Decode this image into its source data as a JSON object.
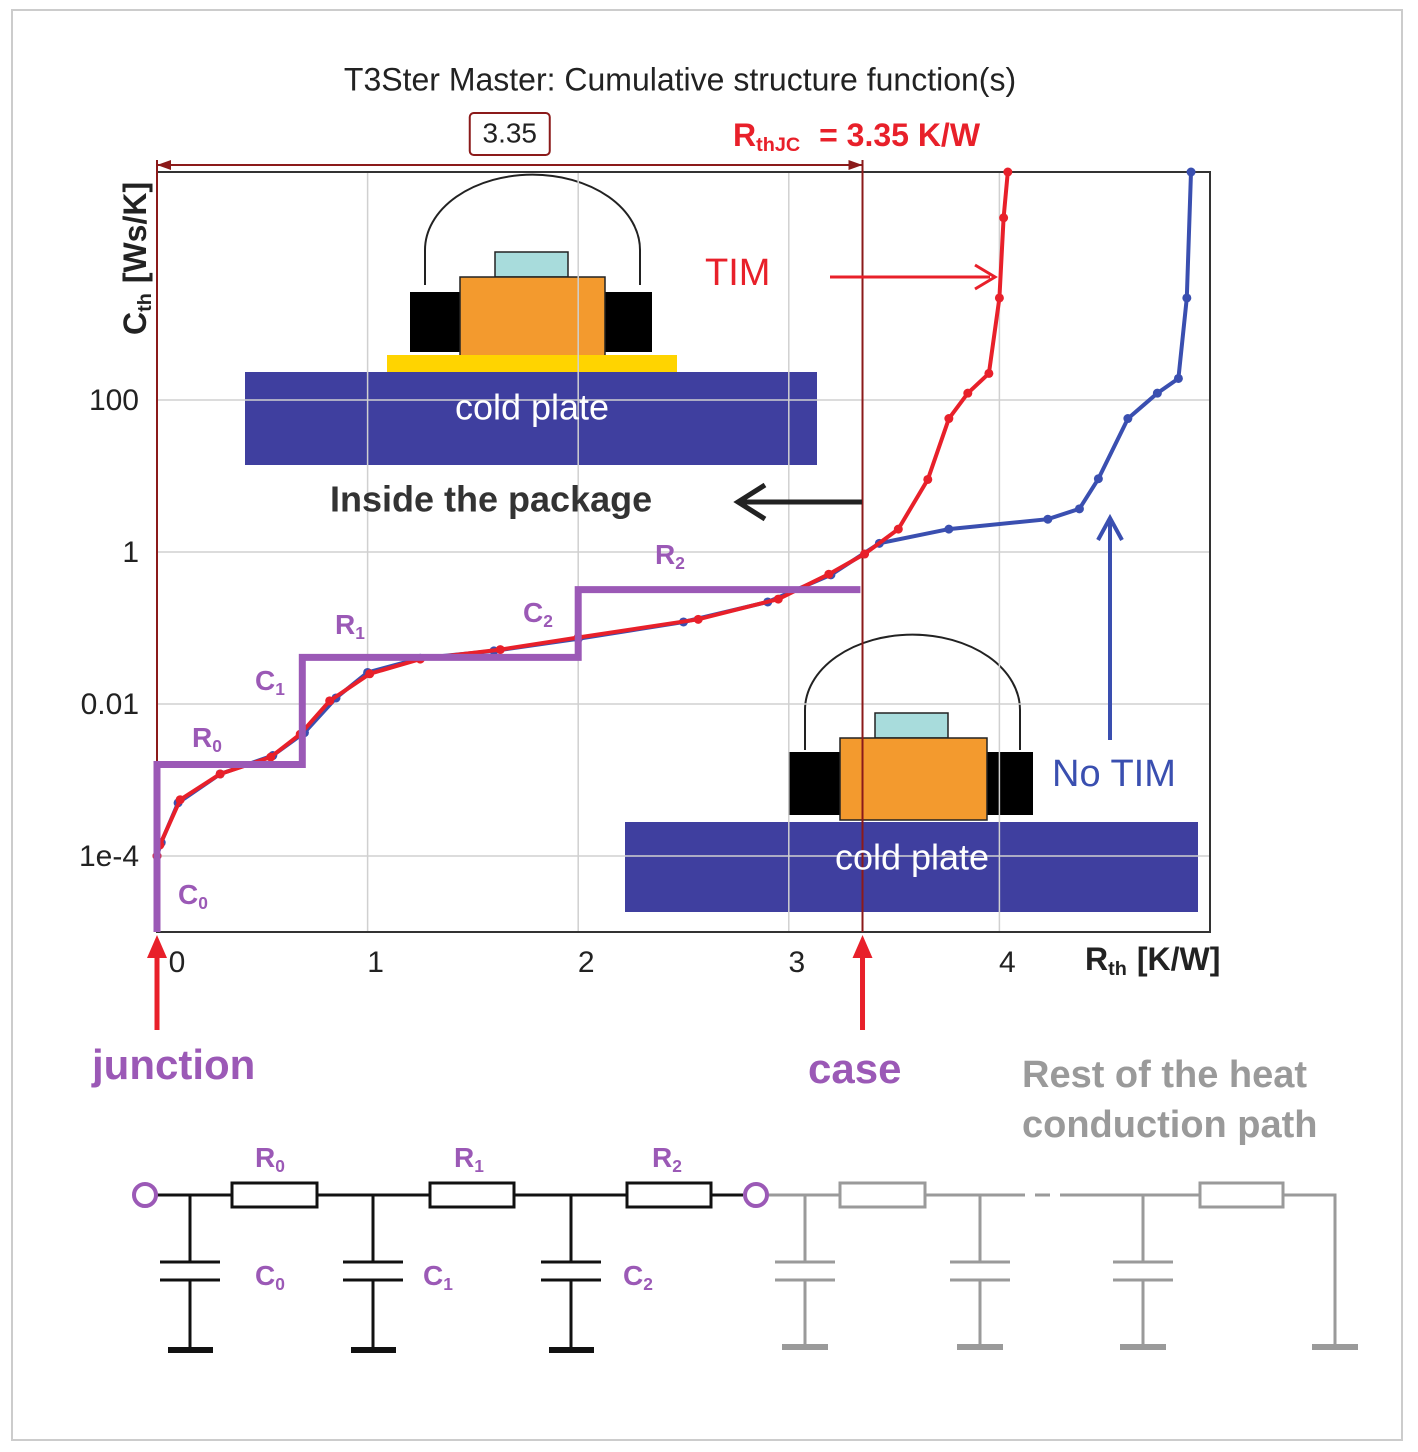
{
  "chart_data": {
    "type": "line",
    "title": "T3Ster Master: Cumulative structure function(s)",
    "xlabel": [
      "R",
      "th",
      "[K/W]"
    ],
    "ylabel": [
      "C",
      "th",
      "[Ws/K]"
    ],
    "xlim": [
      0,
      5
    ],
    "xticks": [
      0,
      1,
      2,
      3,
      4
    ],
    "ylim": [
      1e-05,
      100000
    ],
    "yticks": [
      {
        "value": 0.0001,
        "label": "1e-4"
      },
      0.01,
      1,
      100
    ],
    "log_y": true,
    "grid": true,
    "series": [
      {
        "name": "No TIM",
        "color": "#3a4fb0",
        "x": [
          0,
          0.02,
          0.1,
          0.3,
          0.55,
          0.7,
          0.85,
          1.0,
          1.25,
          1.6,
          2.0,
          2.5,
          2.9,
          3.2,
          3.43,
          3.76,
          4.23,
          4.38,
          4.47,
          4.61,
          4.75,
          4.85,
          4.89,
          4.91
        ],
        "values": [
          0.0001,
          0.00015,
          0.0005,
          0.0012,
          0.0021,
          0.0042,
          0.012,
          0.026,
          0.04,
          0.05,
          0.072,
          0.12,
          0.22,
          0.5,
          1.3,
          2,
          2.7,
          3.7,
          9.2,
          57,
          123,
          192,
          2200,
          100000
        ]
      },
      {
        "name": "TIM",
        "color": "#e8202a",
        "x": [
          0,
          0.014,
          0.11,
          0.3,
          0.54,
          0.68,
          0.82,
          1.01,
          1.25,
          1.63,
          2.0,
          2.57,
          2.95,
          3.19,
          3.36,
          3.52,
          3.66,
          3.76,
          3.85,
          3.95,
          4.0,
          4.02,
          4.04
        ],
        "values": [
          0.0001,
          0.00014,
          0.00055,
          0.0012,
          0.002,
          0.004,
          0.011,
          0.025,
          0.039,
          0.052,
          0.075,
          0.13,
          0.24,
          0.51,
          0.94,
          2,
          9,
          57,
          123,
          224,
          2200,
          25000,
          100000
        ]
      }
    ],
    "steps": {
      "color": "#9b59b6",
      "x": [
        0,
        0,
        0.69,
        0.69,
        2.0,
        2.0,
        3.34
      ],
      "values": [
        1e-05,
        0.0016,
        0.0016,
        0.041,
        0.041,
        0.32,
        0.32
      ]
    },
    "rthjc": {
      "label": [
        "R",
        "thJC",
        " = 3.35 K/W"
      ],
      "value": 3.35,
      "value_label": "3.35",
      "color": "#e8202a"
    },
    "step_labels": [
      [
        "C",
        "0"
      ],
      [
        "R",
        "0"
      ],
      [
        "C",
        "1"
      ],
      [
        "R",
        "1"
      ],
      [
        "C",
        "2"
      ],
      [
        "R",
        "2"
      ]
    ],
    "annotations": {
      "inside": "Inside the package",
      "cold_plate": "cold plate",
      "junction": "junction",
      "case": "case",
      "rest": [
        "Rest of the heat",
        "conduction path"
      ]
    }
  }
}
